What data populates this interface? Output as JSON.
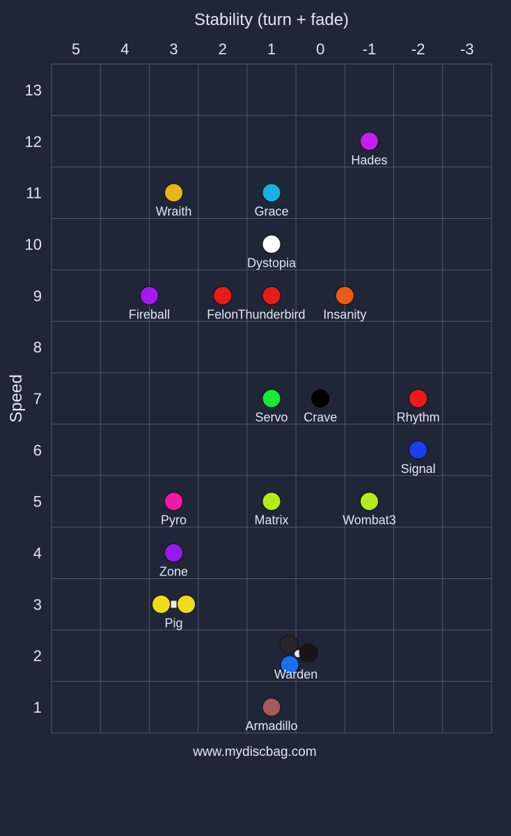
{
  "chart_data": {
    "type": "scatter",
    "title": "",
    "xlabel": "Stability (turn + fade)",
    "ylabel": "Speed",
    "x_ticks": [
      "5",
      "4",
      "3",
      "2",
      "1",
      "0",
      "-1",
      "-2",
      "-3"
    ],
    "y_ticks": [
      "1",
      "2",
      "3",
      "4",
      "5",
      "6",
      "7",
      "8",
      "9",
      "10",
      "11",
      "12",
      "13"
    ],
    "xlim": [
      5.5,
      -3.5
    ],
    "ylim": [
      0.5,
      13.5
    ],
    "x_reversed": true,
    "grid": true,
    "background_color": "#1e2638",
    "points": [
      {
        "name": "Hades",
        "x": -1,
        "y": 12,
        "color": "#c41ff0"
      },
      {
        "name": "Wraith",
        "x": 3,
        "y": 11,
        "color": "#e8b418"
      },
      {
        "name": "Grace",
        "x": 1,
        "y": 11,
        "color": "#18b0e6"
      },
      {
        "name": "Dystopia",
        "x": 1,
        "y": 10,
        "color": "#ffffff"
      },
      {
        "name": "Fireball",
        "x": 3.5,
        "y": 9,
        "color": "#a21af0"
      },
      {
        "name": "Felon",
        "x": 2,
        "y": 9,
        "color": "#ee1a1a"
      },
      {
        "name": "Thunderbird",
        "x": 1,
        "y": 9,
        "color": "#ee1a1a"
      },
      {
        "name": "Insanity",
        "x": -0.5,
        "y": 9,
        "color": "#f05a18"
      },
      {
        "name": "Servo",
        "x": 1,
        "y": 7,
        "color": "#18e83a"
      },
      {
        "name": "Crave",
        "x": 0,
        "y": 7,
        "color": "#000000"
      },
      {
        "name": "Rhythm",
        "x": -2,
        "y": 7,
        "color": "#ee1a1a"
      },
      {
        "name": "Signal",
        "x": -2,
        "y": 6,
        "color": "#1a3ef0"
      },
      {
        "name": "Pyro",
        "x": 3,
        "y": 5,
        "color": "#f01aa6"
      },
      {
        "name": "Matrix",
        "x": 1,
        "y": 5,
        "color": "#b4ec1a"
      },
      {
        "name": "Wombat3",
        "x": -1,
        "y": 5,
        "color": "#b4ec1a"
      },
      {
        "name": "Zone",
        "x": 3,
        "y": 4,
        "color": "#961af0"
      },
      {
        "name": "Pig",
        "x": 3,
        "y": 3,
        "color": "#f0dc1a",
        "copies": 2
      },
      {
        "name": "Warden",
        "x": 0.5,
        "y": 2,
        "colors": [
          "#2a2424",
          "#1a1414",
          "#1a6ef0"
        ],
        "copies": 3
      },
      {
        "name": "Armadillo",
        "x": 1,
        "y": 1,
        "color": "#a85a58"
      }
    ]
  },
  "footer": {
    "text": "www.mydiscbag.com"
  }
}
